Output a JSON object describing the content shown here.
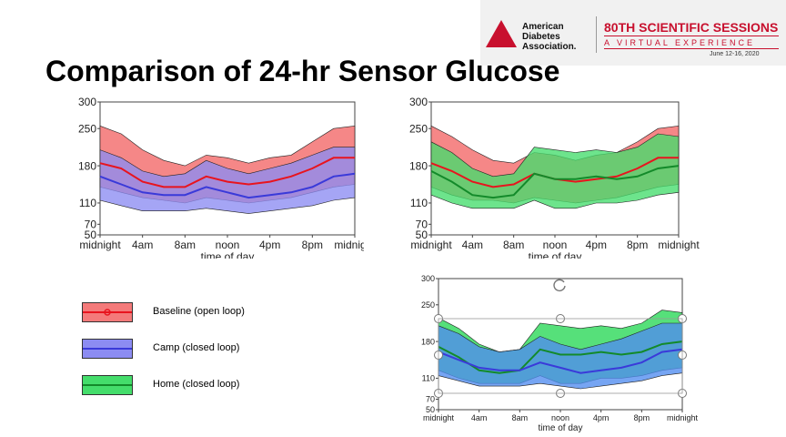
{
  "slide": {
    "title": "Comparison of 24-hr Sensor Glucose",
    "header": {
      "org_line1": "American",
      "org_line2": "Diabetes",
      "org_line3": "Association.",
      "event_title": "80TH SCIENTIFIC SESSIONS",
      "event_subtitle": "A VIRTUAL EXPERIENCE",
      "event_dates": "June 12-16, 2020"
    },
    "legend": [
      {
        "label": "Baseline (open loop)",
        "fill": "#f47a7a",
        "line": "#e8141e",
        "marker": true
      },
      {
        "label": "Camp (closed loop)",
        "fill": "#8c8cf2",
        "line": "#3a3ad9",
        "marker": false
      },
      {
        "label": "Home (closed loop)",
        "fill": "#44dd6b",
        "line": "#138a2a",
        "marker": false
      }
    ]
  },
  "chart_data": [
    {
      "type": "area",
      "xlabel": "time of day",
      "ylabel": "",
      "xlim": [
        0,
        24
      ],
      "ylim": [
        50,
        300
      ],
      "x_ticks": [
        {
          "value": 0,
          "label": "midnight"
        },
        {
          "value": 4,
          "label": "4am"
        },
        {
          "value": 8,
          "label": "8am"
        },
        {
          "value": 12,
          "label": "noon"
        },
        {
          "value": 16,
          "label": "4pm"
        },
        {
          "value": 20,
          "label": "8pm"
        },
        {
          "value": 24,
          "label": "midnight"
        }
      ],
      "y_ticks": [
        50,
        70,
        110,
        180,
        250,
        300
      ],
      "x": [
        0,
        2,
        4,
        6,
        8,
        10,
        12,
        14,
        16,
        18,
        20,
        22,
        24
      ],
      "series": [
        {
          "name": "Baseline (open loop)",
          "color": "#f47a7a",
          "line_color": "#e8141e",
          "median": [
            185,
            175,
            150,
            140,
            140,
            160,
            150,
            145,
            150,
            160,
            175,
            195,
            195
          ],
          "upper": [
            255,
            240,
            210,
            190,
            180,
            200,
            195,
            185,
            195,
            200,
            225,
            250,
            255
          ],
          "lower": [
            140,
            130,
            120,
            115,
            110,
            120,
            115,
            110,
            115,
            120,
            130,
            140,
            145
          ]
        },
        {
          "name": "Camp (closed loop)",
          "color": "#8c8cf2",
          "line_color": "#3a3ad9",
          "median": [
            160,
            145,
            130,
            125,
            125,
            140,
            130,
            120,
            125,
            130,
            140,
            160,
            165
          ],
          "upper": [
            210,
            195,
            170,
            160,
            165,
            190,
            175,
            165,
            175,
            185,
            200,
            215,
            215
          ],
          "lower": [
            115,
            105,
            95,
            95,
            95,
            100,
            95,
            90,
            95,
            100,
            105,
            115,
            120
          ]
        }
      ]
    },
    {
      "type": "area",
      "xlabel": "time of day",
      "ylabel": "",
      "xlim": [
        0,
        24
      ],
      "ylim": [
        50,
        300
      ],
      "x_ticks": [
        {
          "value": 0,
          "label": "midnight"
        },
        {
          "value": 4,
          "label": "4am"
        },
        {
          "value": 8,
          "label": "8am"
        },
        {
          "value": 12,
          "label": "noon"
        },
        {
          "value": 16,
          "label": "4pm"
        },
        {
          "value": 20,
          "label": "8pm"
        },
        {
          "value": 24,
          "label": "midnight"
        }
      ],
      "y_ticks": [
        50,
        70,
        110,
        180,
        250,
        300
      ],
      "x": [
        0,
        2,
        4,
        6,
        8,
        10,
        12,
        14,
        16,
        18,
        20,
        22,
        24
      ],
      "series": [
        {
          "name": "Baseline (open loop)",
          "color": "#f47a7a",
          "line_color": "#e8141e",
          "median": [
            185,
            170,
            150,
            140,
            145,
            165,
            155,
            150,
            155,
            160,
            175,
            195,
            195
          ],
          "upper": [
            255,
            235,
            210,
            190,
            185,
            205,
            200,
            190,
            200,
            205,
            225,
            250,
            255
          ],
          "lower": [
            140,
            125,
            115,
            115,
            110,
            120,
            115,
            110,
            115,
            120,
            130,
            140,
            145
          ]
        },
        {
          "name": "Home (closed loop)",
          "color": "#44dd6b",
          "line_color": "#138a2a",
          "median": [
            170,
            150,
            125,
            120,
            125,
            165,
            155,
            155,
            160,
            155,
            160,
            175,
            180
          ],
          "upper": [
            225,
            205,
            175,
            160,
            165,
            215,
            210,
            205,
            210,
            205,
            215,
            240,
            235
          ],
          "lower": [
            125,
            110,
            100,
            100,
            100,
            115,
            100,
            100,
            110,
            110,
            115,
            125,
            130
          ]
        }
      ]
    },
    {
      "type": "area",
      "xlabel": "time of day",
      "ylabel": "",
      "xlim": [
        0,
        24
      ],
      "ylim": [
        50,
        300
      ],
      "x_ticks": [
        {
          "value": 0,
          "label": "midnight"
        },
        {
          "value": 4,
          "label": "4am"
        },
        {
          "value": 8,
          "label": "8am"
        },
        {
          "value": 12,
          "label": "noon"
        },
        {
          "value": 16,
          "label": "4pm"
        },
        {
          "value": 20,
          "label": "8pm"
        },
        {
          "value": 24,
          "label": "midnight"
        }
      ],
      "y_ticks": [
        50,
        70,
        110,
        180,
        250,
        300
      ],
      "x": [
        0,
        2,
        4,
        6,
        8,
        10,
        12,
        14,
        16,
        18,
        20,
        22,
        24
      ],
      "series": [
        {
          "name": "Home (closed loop)",
          "color": "#44dd6b",
          "line_color": "#138a2a",
          "median": [
            170,
            150,
            125,
            120,
            125,
            165,
            155,
            155,
            160,
            155,
            160,
            175,
            180
          ],
          "upper": [
            225,
            205,
            175,
            160,
            165,
            215,
            210,
            205,
            210,
            205,
            215,
            240,
            235
          ],
          "lower": [
            125,
            110,
            100,
            100,
            100,
            115,
            100,
            100,
            110,
            110,
            115,
            125,
            130
          ]
        },
        {
          "name": "Camp (closed loop)",
          "color": "#4f8cf0",
          "line_color": "#3a3ad9",
          "median": [
            160,
            145,
            130,
            125,
            125,
            140,
            130,
            120,
            125,
            130,
            140,
            160,
            165
          ],
          "upper": [
            210,
            195,
            170,
            160,
            165,
            190,
            175,
            165,
            175,
            185,
            200,
            215,
            215
          ],
          "lower": [
            115,
            105,
            95,
            95,
            95,
            100,
            95,
            90,
            95,
            100,
            105,
            115,
            120
          ]
        }
      ]
    }
  ]
}
